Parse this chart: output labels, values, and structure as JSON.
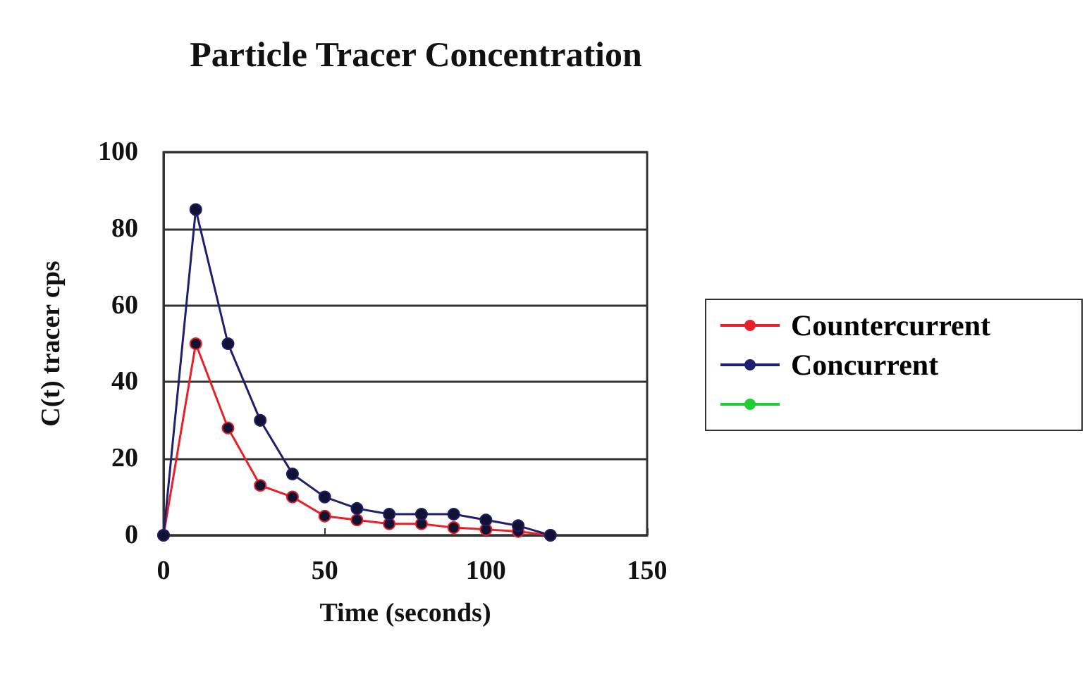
{
  "chart_data": {
    "type": "line",
    "title": "Particle Tracer Concentration",
    "xlabel": "Time (seconds)",
    "ylabel": "C(t) tracer cps",
    "x": [
      0,
      10,
      20,
      30,
      40,
      50,
      60,
      70,
      80,
      90,
      100,
      110,
      120
    ],
    "series": [
      {
        "name": "Countercurrent",
        "color": "#e8202a",
        "values": [
          0,
          50,
          28,
          13,
          10,
          5,
          4,
          3,
          3,
          2,
          1.5,
          1,
          0
        ]
      },
      {
        "name": "Concurrent",
        "color": "#1f1f6e",
        "values": [
          0,
          85,
          50,
          30,
          16,
          10,
          7,
          5.5,
          5.5,
          5.5,
          4,
          2.5,
          0
        ]
      },
      {
        "color": "#22cc33",
        "values": [
          null,
          null,
          null,
          null,
          null,
          null,
          null,
          null,
          null,
          null,
          null,
          null,
          null
        ]
      }
    ],
    "xlim": [
      0,
      150
    ],
    "xticks": [
      0,
      50,
      100,
      150
    ],
    "ylim": [
      0,
      100
    ],
    "yticks": [
      0,
      20,
      40,
      60,
      80,
      100
    ],
    "grid": "y",
    "legend": "right",
    "marker": "circle",
    "line_style": "solid"
  }
}
